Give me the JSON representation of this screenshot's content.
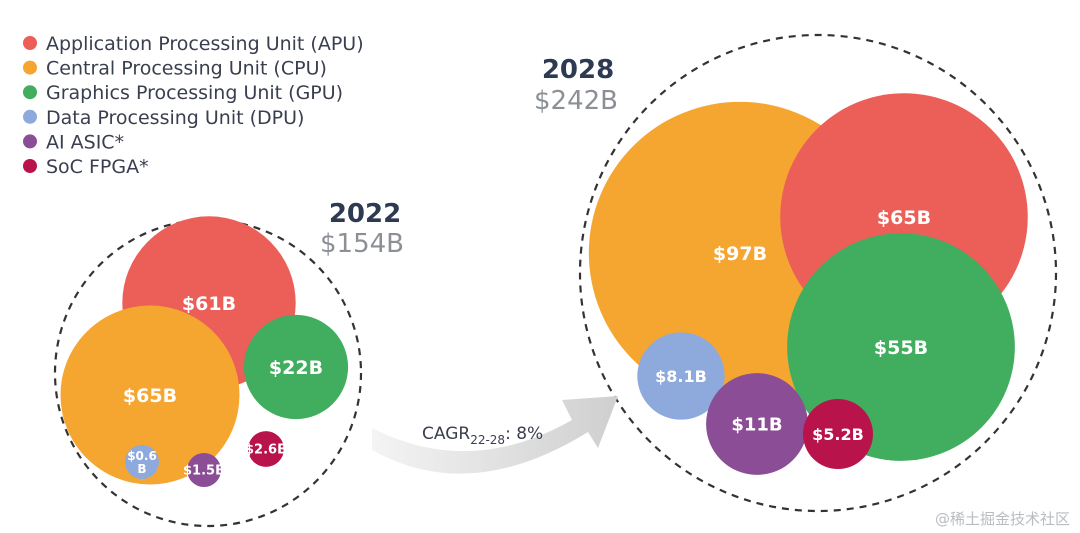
{
  "colors": {
    "APU": "#ec5e58",
    "CPU": "#f5a631",
    "GPU": "#41ad5e",
    "DPU": "#8ea9dc",
    "AI ASIC": "#8b4d96",
    "SoC FPGA": "#b8134a"
  },
  "legend": [
    {
      "key": "APU",
      "label": "Application Processing Unit (APU)"
    },
    {
      "key": "CPU",
      "label": "Central Processing Unit (CPU)"
    },
    {
      "key": "GPU",
      "label": "Graphics Processing Unit (GPU)"
    },
    {
      "key": "DPU",
      "label": "Data Processing Unit (DPU)"
    },
    {
      "key": "AI ASIC",
      "label": "AI ASIC*"
    },
    {
      "key": "SoC FPGA",
      "label": "SoC FPGA*"
    }
  ],
  "chart_data": {
    "type": "bubble",
    "groups": [
      {
        "year": "2022",
        "total": "$154B",
        "bubbles": [
          {
            "segment": "APU",
            "value": 61,
            "label": "$61B"
          },
          {
            "segment": "CPU",
            "value": 65,
            "label": "$65B"
          },
          {
            "segment": "GPU",
            "value": 22,
            "label": "$22B"
          },
          {
            "segment": "DPU",
            "value": 0.6,
            "label_lines": [
              "$0.6",
              "B"
            ]
          },
          {
            "segment": "AI ASIC",
            "value": 1.5,
            "label": "$1.5B"
          },
          {
            "segment": "SoC FPGA",
            "value": 2.6,
            "label": "$2.6B"
          }
        ]
      },
      {
        "year": "2028",
        "total": "$242B",
        "bubbles": [
          {
            "segment": "CPU",
            "value": 97,
            "label": "$97B"
          },
          {
            "segment": "APU",
            "value": 65,
            "label": "$65B"
          },
          {
            "segment": "GPU",
            "value": 55,
            "label": "$55B"
          },
          {
            "segment": "DPU",
            "value": 8.1,
            "label": "$8.1B"
          },
          {
            "segment": "AI ASIC",
            "value": 11,
            "label": "$11B"
          },
          {
            "segment": "SoC FPGA",
            "value": 5.2,
            "label": "$5.2B"
          }
        ]
      }
    ],
    "arrow_label": {
      "prefix": "CAGR",
      "subscript": "22-28",
      "suffix": ": 8%"
    }
  },
  "watermark": "@稀土掘金技术社区"
}
